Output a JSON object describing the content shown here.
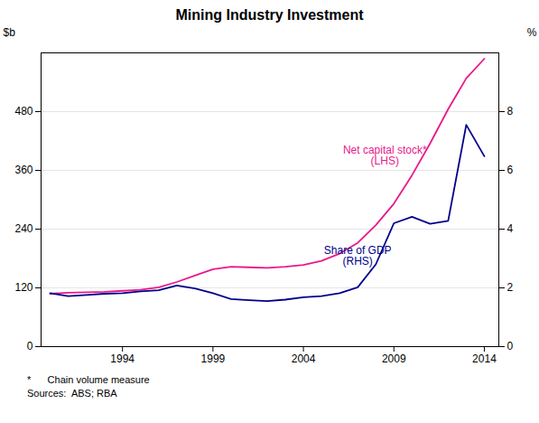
{
  "chart_data": {
    "type": "line",
    "title": "Mining Industry Investment",
    "ylabel": "$b",
    "y2label": "%",
    "footnotes": [
      "*      Chain volume measure",
      "Sources:  ABS; RBA"
    ],
    "x": [
      1990,
      1991,
      1992,
      1993,
      1994,
      1995,
      1996,
      1997,
      1998,
      1999,
      2000,
      2001,
      2002,
      2003,
      2004,
      2005,
      2006,
      2007,
      2008,
      2009,
      2010,
      2011,
      2012,
      2013,
      2014
    ],
    "series": [
      {
        "color": "#E8198B",
        "axis": "y",
        "values": [
          108,
          110,
          111,
          112,
          114,
          116,
          121,
          132,
          145,
          158,
          163,
          162,
          161,
          163,
          167,
          175,
          190,
          212,
          248,
          292,
          350,
          415,
          485,
          548,
          588
        ]
      },
      {
        "color": "#00008B",
        "axis": "y2",
        "values": [
          1.82,
          1.72,
          1.76,
          1.8,
          1.82,
          1.88,
          1.92,
          2.08,
          1.98,
          1.82,
          1.62,
          1.58,
          1.55,
          1.6,
          1.68,
          1.72,
          1.82,
          2.02,
          2.8,
          4.2,
          4.42,
          4.18,
          4.28,
          7.55,
          6.48
        ]
      }
    ],
    "xlim": [
      1989.5,
      2014.8
    ],
    "xticks": [
      1994,
      1999,
      2004,
      2009,
      2014
    ],
    "ylim": [
      0,
      600
    ],
    "yticks": [
      0,
      120,
      240,
      360,
      480
    ],
    "y2lim": [
      0,
      10
    ],
    "y2ticks": [
      0,
      2,
      4,
      6,
      8
    ],
    "grid": true,
    "annotations": [
      {
        "text": "Net capital stock*\n(LHS)",
        "x": 2008.5,
        "y": 390,
        "color": "#E8198B"
      },
      {
        "text": "Share of GDP\n(RHS)",
        "x": 2007.0,
        "y": 185,
        "color": "#00008B"
      }
    ]
  }
}
